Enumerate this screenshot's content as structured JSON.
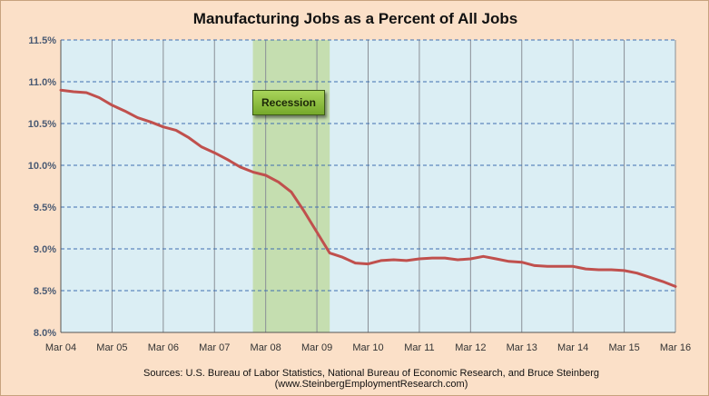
{
  "chart_data": {
    "type": "line",
    "title": "Manufacturing Jobs as a Percent of All Jobs",
    "source": "Sources: U.S. Bureau of Labor Statistics, National Bureau of Economic Research, and Bruce Steinberg (www.SteinbergEmploymentResearch.com)",
    "x_tick_labels": [
      "Mar 04",
      "Mar 05",
      "Mar 06",
      "Mar 07",
      "Mar 08",
      "Mar 09",
      "Mar 10",
      "Mar 11",
      "Mar 12",
      "Mar 13",
      "Mar 14",
      "Mar 15",
      "Mar 16"
    ],
    "y_tick_labels": [
      "8.0%",
      "8.5%",
      "9.0%",
      "9.5%",
      "10.0%",
      "10.5%",
      "11.0%",
      "11.5%"
    ],
    "ylim": [
      8.0,
      11.5
    ],
    "xlim": [
      "2004-03",
      "2016-03"
    ],
    "grid": true,
    "recession": {
      "label": "Recession",
      "start": "2007-12",
      "end": "2009-06"
    },
    "colors": {
      "line": "#c0504d",
      "plot_bg": "#dbeef4",
      "recession_band": "#c5deb0",
      "frame_bg": "#fbe0c8"
    },
    "series": [
      {
        "x": [
          "2004-03",
          "2004-06",
          "2004-09",
          "2004-12",
          "2005-03",
          "2005-06",
          "2005-09",
          "2005-12",
          "2006-03",
          "2006-06",
          "2006-09",
          "2006-12",
          "2007-03",
          "2007-06",
          "2007-09",
          "2007-12",
          "2008-03",
          "2008-06",
          "2008-09",
          "2008-12",
          "2009-03",
          "2009-06",
          "2009-09",
          "2009-12",
          "2010-03",
          "2010-06",
          "2010-09",
          "2010-12",
          "2011-03",
          "2011-06",
          "2011-09",
          "2011-12",
          "2012-03",
          "2012-06",
          "2012-09",
          "2012-12",
          "2013-03",
          "2013-06",
          "2013-09",
          "2013-12",
          "2014-03",
          "2014-06",
          "2014-09",
          "2014-12",
          "2015-03",
          "2015-06",
          "2015-09",
          "2015-12",
          "2016-03"
        ],
        "values": [
          10.9,
          10.88,
          10.87,
          10.81,
          10.72,
          10.65,
          10.57,
          10.52,
          10.46,
          10.42,
          10.33,
          10.22,
          10.15,
          10.07,
          9.98,
          9.92,
          9.88,
          9.8,
          9.68,
          9.45,
          9.2,
          8.95,
          8.9,
          8.83,
          8.82,
          8.86,
          8.87,
          8.86,
          8.88,
          8.89,
          8.89,
          8.87,
          8.88,
          8.91,
          8.88,
          8.85,
          8.84,
          8.8,
          8.79,
          8.79,
          8.79,
          8.76,
          8.75,
          8.75,
          8.74,
          8.71,
          8.66,
          8.61,
          8.55
        ]
      }
    ]
  }
}
